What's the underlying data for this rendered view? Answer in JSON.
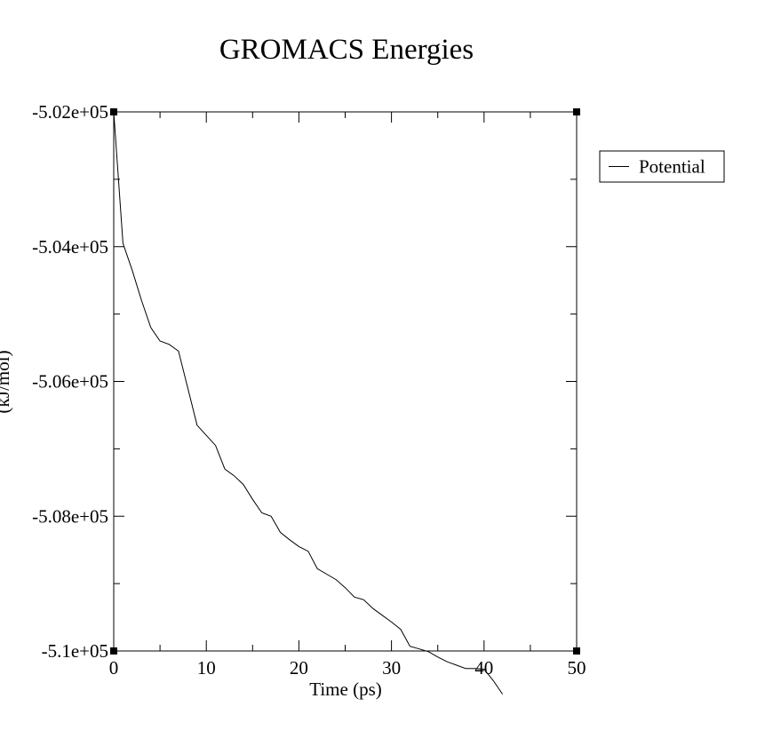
{
  "chart_data": {
    "type": "line",
    "title": "GROMACS Energies",
    "xlabel": "Time (ps)",
    "ylabel": "(kJ/mol)",
    "xlim": [
      0,
      50
    ],
    "ylim": [
      -510000,
      -502000
    ],
    "x_ticks": [
      0,
      10,
      20,
      30,
      40,
      50
    ],
    "x_tick_labels": [
      "0",
      "10",
      "20",
      "30",
      "40",
      "50"
    ],
    "y_ticks": [
      -502000,
      -504000,
      -506000,
      -508000,
      -510000
    ],
    "y_tick_labels": [
      "-5.02e+05",
      "-5.04e+05",
      "-5.06e+05",
      "-5.08e+05",
      "-5.1e+05"
    ],
    "grid": false,
    "legend_position": "right",
    "series": [
      {
        "name": "Potential",
        "color": "#000000",
        "x": [
          0,
          1,
          2,
          3,
          4,
          5,
          6,
          7,
          8,
          9,
          10,
          11,
          12,
          13,
          14,
          15,
          16,
          17,
          18,
          19,
          20,
          21,
          22,
          23,
          24,
          25,
          26,
          27,
          28,
          29,
          30,
          31,
          32,
          33,
          34,
          35,
          36,
          37,
          38,
          39,
          40,
          41,
          42
        ],
        "y": [
          -502000,
          -503950,
          -504350,
          -504800,
          -505200,
          -505400,
          -505450,
          -505550,
          -506100,
          -506650,
          -506800,
          -506950,
          -507300,
          -507400,
          -507530,
          -507750,
          -507950,
          -508000,
          -508240,
          -508350,
          -508450,
          -508520,
          -508780,
          -508860,
          -508940,
          -509060,
          -509200,
          -509240,
          -509370,
          -509470,
          -509570,
          -509680,
          -509930,
          -509970,
          -510010,
          -510090,
          -510160,
          -510210,
          -510260,
          -510260,
          -510270,
          -510440,
          -510640
        ]
      }
    ]
  }
}
